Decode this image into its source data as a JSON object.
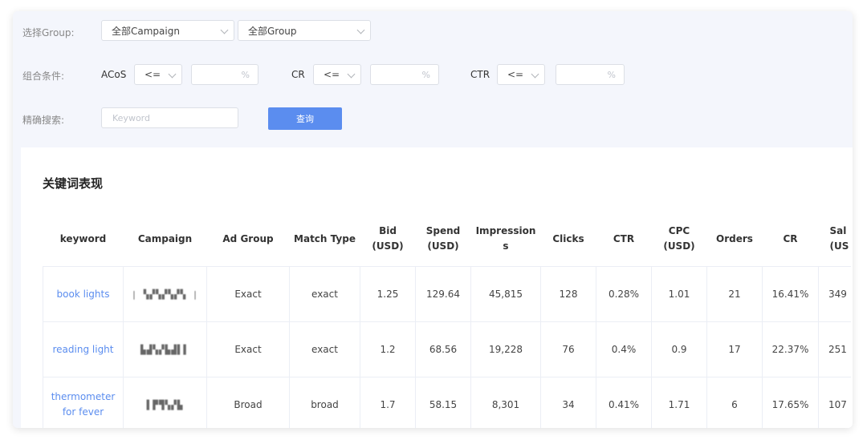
{
  "filters": {
    "group_label": "选择Group:",
    "campaign_select": "全部Campaign",
    "group_select": "全部Group",
    "combo_label": "组合条件:",
    "metrics": [
      {
        "name": "ACoS",
        "operator": "<=",
        "unit": "%"
      },
      {
        "name": "CR",
        "operator": "<=",
        "unit": "%"
      },
      {
        "name": "CTR",
        "operator": "<=",
        "unit": "%"
      }
    ],
    "search_label": "精确搜索:",
    "keyword_placeholder": "Keyword",
    "query_button": "查询"
  },
  "table": {
    "title": "关键词表现",
    "columns": [
      "keyword",
      "Campaign",
      "Ad Group",
      "Match Type",
      "Bid\n(USD)",
      "Spend\n(USD)",
      "Impression\ns",
      "Clicks",
      "CTR",
      "CPC\n(USD)",
      "Orders",
      "CR",
      "Sal\n(US"
    ],
    "rows": [
      {
        "keyword": "book lights",
        "campaign": "| ▚▞▚▞▚▞▚ |",
        "ad_group": "Exact",
        "match_type": "exact",
        "bid": "1.25",
        "spend": "129.64",
        "impressions": "45,815",
        "clicks": "128",
        "ctr": "0.28%",
        "cpc": "1.01",
        "orders": "21",
        "cr": "16.41%",
        "sales": "349"
      },
      {
        "keyword": "reading light",
        "campaign": "▙▟▚▞▙▟▌▌",
        "ad_group": "Exact",
        "match_type": "exact",
        "bid": "1.2",
        "spend": "68.56",
        "impressions": "19,228",
        "clicks": "76",
        "ctr": "0.4%",
        "cpc": "0.9",
        "orders": "17",
        "cr": "22.37%",
        "sales": "251"
      },
      {
        "keyword": "thermometer for fever",
        "campaign": "▌▛▜▚▞▙",
        "ad_group": "Broad",
        "match_type": "broad",
        "bid": "1.7",
        "spend": "58.15",
        "impressions": "8,301",
        "clicks": "34",
        "ctr": "0.41%",
        "cpc": "1.71",
        "orders": "6",
        "cr": "17.65%",
        "sales": "107"
      }
    ]
  }
}
